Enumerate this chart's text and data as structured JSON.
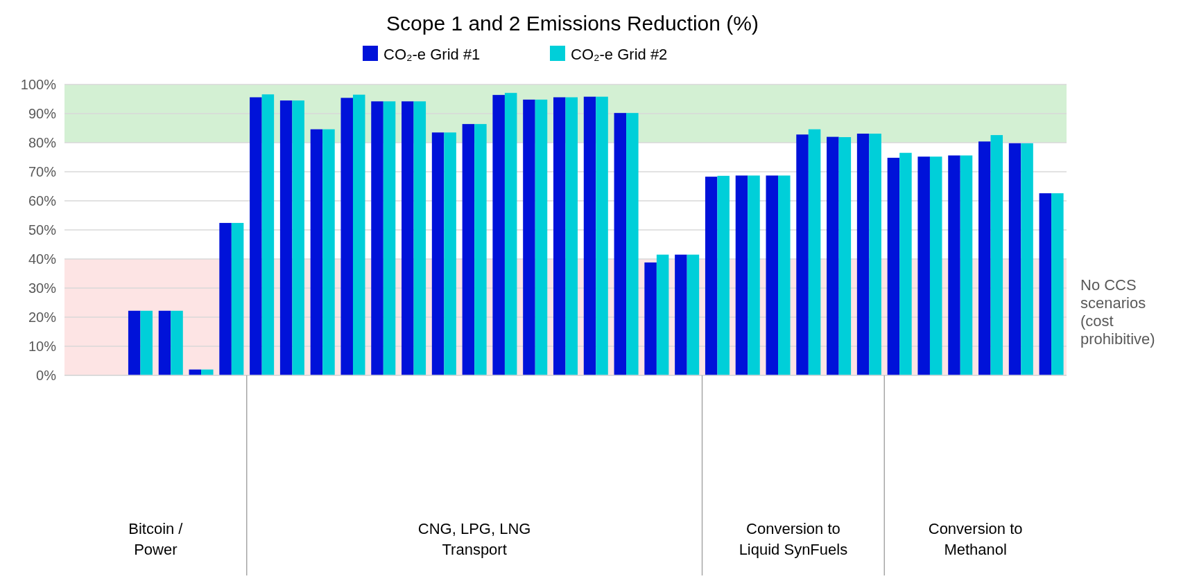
{
  "chart_data": {
    "type": "bar",
    "title": "Scope 1 and 2 Emissions Reduction (%)",
    "categories": [
      null,
      null,
      null,
      null,
      null,
      null,
      null,
      null,
      null,
      null,
      null,
      null,
      null,
      null,
      null,
      null,
      null,
      null,
      null,
      null,
      null,
      null,
      null,
      null,
      null,
      null,
      null,
      null,
      null,
      null,
      null,
      null,
      null
    ],
    "series": [
      {
        "name": "CO₂-e Grid #1",
        "color": "#0012d9",
        "values": [
          null,
          null,
          22.2,
          22.2,
          2.0,
          52.4,
          95.6,
          94.5,
          84.6,
          95.4,
          94.2,
          94.2,
          83.5,
          86.4,
          96.4,
          94.8,
          95.6,
          95.8,
          90.2,
          38.8,
          41.5,
          68.3,
          68.7,
          68.7,
          82.8,
          82.0,
          83.1,
          74.8,
          75.2,
          75.6,
          80.4,
          79.8,
          62.6
        ]
      },
      {
        "name": "CO₂-e Grid #2",
        "color": "#00cfd9",
        "values": [
          null,
          null,
          22.2,
          22.2,
          2.0,
          52.4,
          96.6,
          94.5,
          84.6,
          96.5,
          94.2,
          94.2,
          83.5,
          86.4,
          97.1,
          94.8,
          95.6,
          95.8,
          90.2,
          41.5,
          41.5,
          68.6,
          68.7,
          68.7,
          84.6,
          81.9,
          83.1,
          76.5,
          75.2,
          75.6,
          82.6,
          79.8,
          62.6
        ]
      }
    ],
    "ylim": [
      0,
      100
    ],
    "yticks": [
      {
        "value": 0,
        "label": "0%"
      },
      {
        "value": 10,
        "label": "10%"
      },
      {
        "value": 20,
        "label": "20%"
      },
      {
        "value": 30,
        "label": "30%"
      },
      {
        "value": 40,
        "label": "40%"
      },
      {
        "value": 50,
        "label": "50%"
      },
      {
        "value": 60,
        "label": "60%"
      },
      {
        "value": 70,
        "label": "70%"
      },
      {
        "value": 80,
        "label": "80%"
      },
      {
        "value": 90,
        "label": "90%"
      },
      {
        "value": 100,
        "label": "100%"
      }
    ],
    "grid": "y",
    "legend": "top",
    "bands": [
      {
        "axis": "y",
        "from": 80,
        "to": 100,
        "color": "#d3f0d3"
      },
      {
        "axis": "y",
        "from": 0,
        "to": 40,
        "color": "#fde4e4",
        "label": "No CCS scenarios (cost prohibitive)"
      }
    ],
    "annotations": [
      "Bitcoin / Power",
      "CNG, LPG, LNG Transport",
      "Conversion to Liquid SynFuels",
      "Conversion to Methanol"
    ]
  }
}
